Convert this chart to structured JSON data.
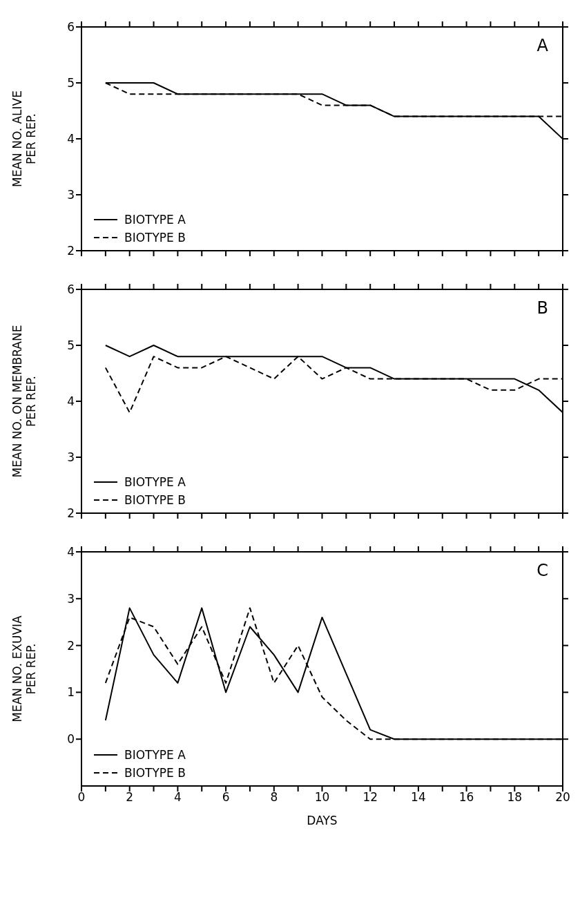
{
  "chart_data": [
    {
      "type": "line",
      "title": "A",
      "ylabel": "MEAN NO. ALIVE\nPER REP.",
      "x": [
        1,
        2,
        3,
        4,
        5,
        6,
        7,
        8,
        9,
        10,
        11,
        12,
        13,
        14,
        15,
        16,
        17,
        18,
        19,
        20
      ],
      "xlim": [
        0,
        20
      ],
      "xticks": [
        0,
        {
          "value": 1,
          "label": null
        },
        2,
        {
          "value": 3,
          "label": null
        },
        4,
        {
          "value": 5,
          "label": null
        },
        6,
        {
          "value": 7,
          "label": null
        },
        8,
        {
          "value": 9,
          "label": null
        },
        10,
        {
          "value": 11,
          "label": null
        },
        12,
        {
          "value": 13,
          "label": null
        },
        14,
        {
          "value": 15,
          "label": null
        },
        16,
        {
          "value": 17,
          "label": null
        },
        18,
        {
          "value": 19,
          "label": null
        },
        20
      ],
      "ylim": [
        2,
        6
      ],
      "yticks": [
        2,
        3,
        4,
        5,
        6
      ],
      "tick_labels": "y",
      "legend": "bottom left",
      "marker": "none",
      "series": [
        {
          "name": "BIOTYPE A",
          "color": "#000000",
          "line_style": "solid",
          "values": [
            5,
            5,
            5,
            4.8,
            4.8,
            4.8,
            4.8,
            4.8,
            4.8,
            4.8,
            4.6,
            4.6,
            4.4,
            4.4,
            4.4,
            4.4,
            4.4,
            4.4,
            4.4,
            4.0
          ]
        },
        {
          "name": "BIOTYPE B",
          "color": "#000000",
          "line_style": "dashed",
          "values": [
            5,
            4.8,
            4.8,
            4.8,
            4.8,
            4.8,
            4.8,
            4.8,
            4.8,
            4.6,
            4.6,
            4.6,
            4.4,
            4.4,
            4.4,
            4.4,
            4.4,
            4.4,
            4.4,
            4.4
          ]
        }
      ]
    },
    {
      "type": "line",
      "title": "B",
      "ylabel": "MEAN NO. ON MEMBRANE\nPER REP.",
      "x": [
        1,
        2,
        3,
        4,
        5,
        6,
        7,
        8,
        9,
        10,
        11,
        12,
        13,
        14,
        15,
        16,
        17,
        18,
        19,
        20
      ],
      "xlim": [
        0,
        20
      ],
      "xticks": [
        0,
        {
          "value": 1,
          "label": null
        },
        2,
        {
          "value": 3,
          "label": null
        },
        4,
        {
          "value": 5,
          "label": null
        },
        6,
        {
          "value": 7,
          "label": null
        },
        8,
        {
          "value": 9,
          "label": null
        },
        10,
        {
          "value": 11,
          "label": null
        },
        12,
        {
          "value": 13,
          "label": null
        },
        14,
        {
          "value": 15,
          "label": null
        },
        16,
        {
          "value": 17,
          "label": null
        },
        18,
        {
          "value": 19,
          "label": null
        },
        20
      ],
      "ylim": [
        2,
        6
      ],
      "yticks": [
        2,
        3,
        4,
        5,
        6
      ],
      "tick_labels": "y",
      "legend": "bottom left",
      "marker": "none",
      "series": [
        {
          "name": "BIOTYPE A",
          "color": "#000000",
          "line_style": "solid",
          "values": [
            5,
            4.8,
            5,
            4.8,
            4.8,
            4.8,
            4.8,
            4.8,
            4.8,
            4.8,
            4.6,
            4.6,
            4.4,
            4.4,
            4.4,
            4.4,
            4.4,
            4.4,
            4.2,
            3.8
          ]
        },
        {
          "name": "BIOTYPE B",
          "color": "#000000",
          "line_style": "dashed",
          "values": [
            4.6,
            3.8,
            4.8,
            4.6,
            4.6,
            4.8,
            4.6,
            4.4,
            4.8,
            4.4,
            4.6,
            4.4,
            4.4,
            4.4,
            4.4,
            4.4,
            4.2,
            4.2,
            4.4,
            4.4
          ]
        }
      ]
    },
    {
      "type": "line",
      "title": "C",
      "xlabel": "DAYS",
      "ylabel": "MEAN NO. EXUVIA\nPER REP.",
      "x": [
        1,
        2,
        3,
        4,
        5,
        6,
        7,
        8,
        9,
        10,
        11,
        12,
        13,
        14,
        15,
        16,
        17,
        18,
        19,
        20
      ],
      "xlim": [
        0,
        20
      ],
      "xticks": [
        0,
        {
          "value": 1,
          "label": null
        },
        2,
        {
          "value": 3,
          "label": null
        },
        4,
        {
          "value": 5,
          "label": null
        },
        6,
        {
          "value": 7,
          "label": null
        },
        8,
        {
          "value": 9,
          "label": null
        },
        10,
        {
          "value": 11,
          "label": null
        },
        12,
        {
          "value": 13,
          "label": null
        },
        14,
        {
          "value": 15,
          "label": null
        },
        16,
        {
          "value": 17,
          "label": null
        },
        18,
        {
          "value": 19,
          "label": null
        },
        20
      ],
      "ylim": [
        -1,
        4
      ],
      "yticks": [
        0,
        1,
        2,
        3,
        4
      ],
      "legend": "bottom left",
      "marker": "none",
      "series": [
        {
          "name": "BIOTYPE A",
          "color": "#000000",
          "line_style": "solid",
          "values": [
            0.4,
            2.8,
            1.8,
            1.2,
            2.8,
            1.0,
            2.4,
            1.8,
            1.0,
            2.6,
            1.4,
            0.2,
            0,
            0,
            0,
            0,
            0,
            0,
            0,
            0
          ]
        },
        {
          "name": "BIOTYPE B",
          "color": "#000000",
          "line_style": "dashed",
          "values": [
            1.2,
            2.6,
            2.4,
            1.6,
            2.4,
            1.2,
            2.8,
            1.2,
            2.0,
            0.9,
            0.4,
            0,
            0,
            0,
            0,
            0,
            0,
            0,
            0,
            0
          ]
        }
      ]
    }
  ]
}
